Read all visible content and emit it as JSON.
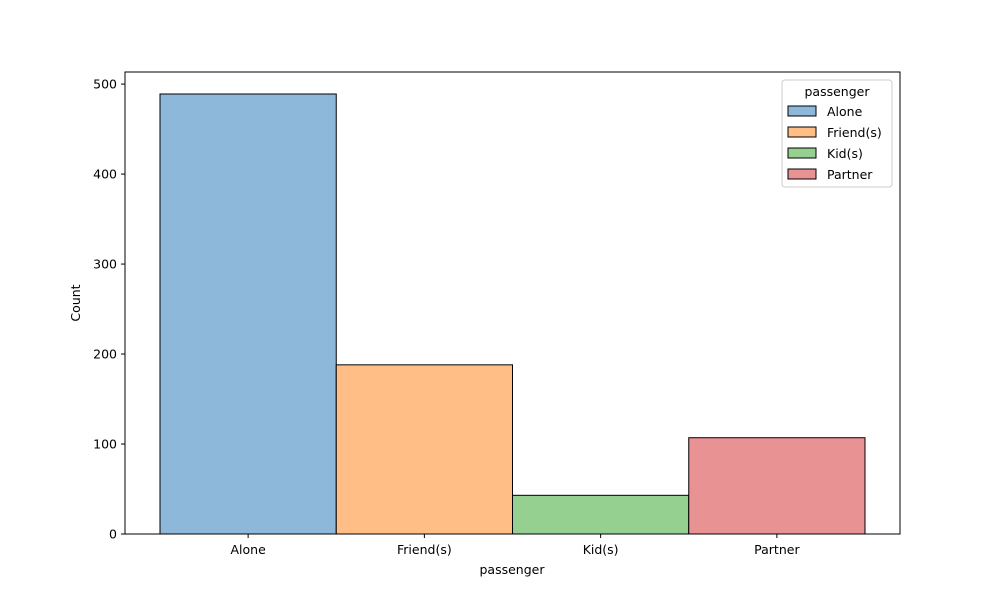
{
  "chart_data": {
    "type": "bar",
    "title": "",
    "xlabel": "passenger",
    "ylabel": "Count",
    "categories": [
      "Alone",
      "Friend(s)",
      "Kid(s)",
      "Partner"
    ],
    "values": [
      489,
      188,
      43,
      107
    ],
    "ylim": [
      0,
      513.45
    ],
    "yticks": [
      0,
      100,
      200,
      300,
      400,
      500
    ],
    "grid": false,
    "legend": {
      "title": "passenger",
      "placement": "top-right",
      "entries": [
        "Alone",
        "Friend(s)",
        "Kid(s)",
        "Partner"
      ]
    },
    "colors": [
      "#8db8d9",
      "#ffbe86",
      "#95d091",
      "#e99293"
    ],
    "edge_color": "#000000"
  }
}
